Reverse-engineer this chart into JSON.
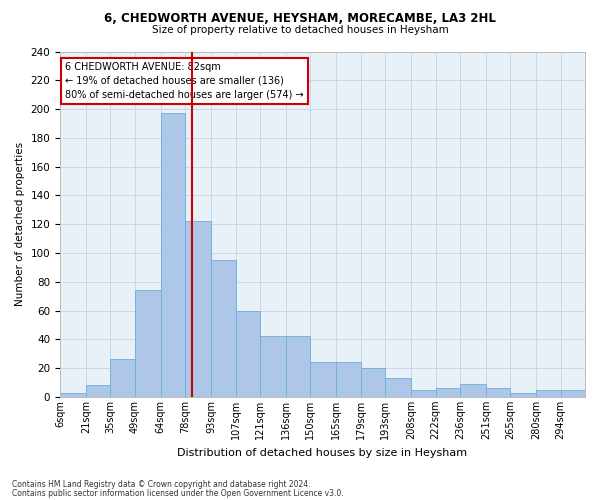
{
  "title": "6, CHEDWORTH AVENUE, HEYSHAM, MORECAMBE, LA3 2HL",
  "subtitle": "Size of property relative to detached houses in Heysham",
  "xlabel": "Distribution of detached houses by size in Heysham",
  "ylabel": "Number of detached properties",
  "bar_color": "#aec6e8",
  "bar_edge_color": "#6baed6",
  "grid_color": "#c8d8ea",
  "background_color": "#e8f0f8",
  "annotation_text": "6 CHEDWORTH AVENUE: 82sqm\n← 19% of detached houses are smaller (136)\n80% of semi-detached houses are larger (574) →",
  "vline_x": 82,
  "vline_color": "#cc0000",
  "categories": [
    "6sqm",
    "21sqm",
    "35sqm",
    "49sqm",
    "64sqm",
    "78sqm",
    "93sqm",
    "107sqm",
    "121sqm",
    "136sqm",
    "150sqm",
    "165sqm",
    "179sqm",
    "193sqm",
    "208sqm",
    "222sqm",
    "236sqm",
    "251sqm",
    "265sqm",
    "280sqm",
    "294sqm"
  ],
  "bin_edges": [
    6,
    21,
    35,
    49,
    64,
    78,
    93,
    107,
    121,
    136,
    150,
    165,
    179,
    193,
    208,
    222,
    236,
    251,
    265,
    280,
    294,
    308
  ],
  "values": [
    3,
    8,
    26,
    74,
    197,
    122,
    95,
    60,
    42,
    42,
    24,
    24,
    20,
    13,
    5,
    6,
    9,
    6,
    3,
    5,
    5
  ],
  "ylim": [
    0,
    240
  ],
  "yticks": [
    0,
    20,
    40,
    60,
    80,
    100,
    120,
    140,
    160,
    180,
    200,
    220,
    240
  ],
  "footer1": "Contains HM Land Registry data © Crown copyright and database right 2024.",
  "footer2": "Contains public sector information licensed under the Open Government Licence v3.0."
}
